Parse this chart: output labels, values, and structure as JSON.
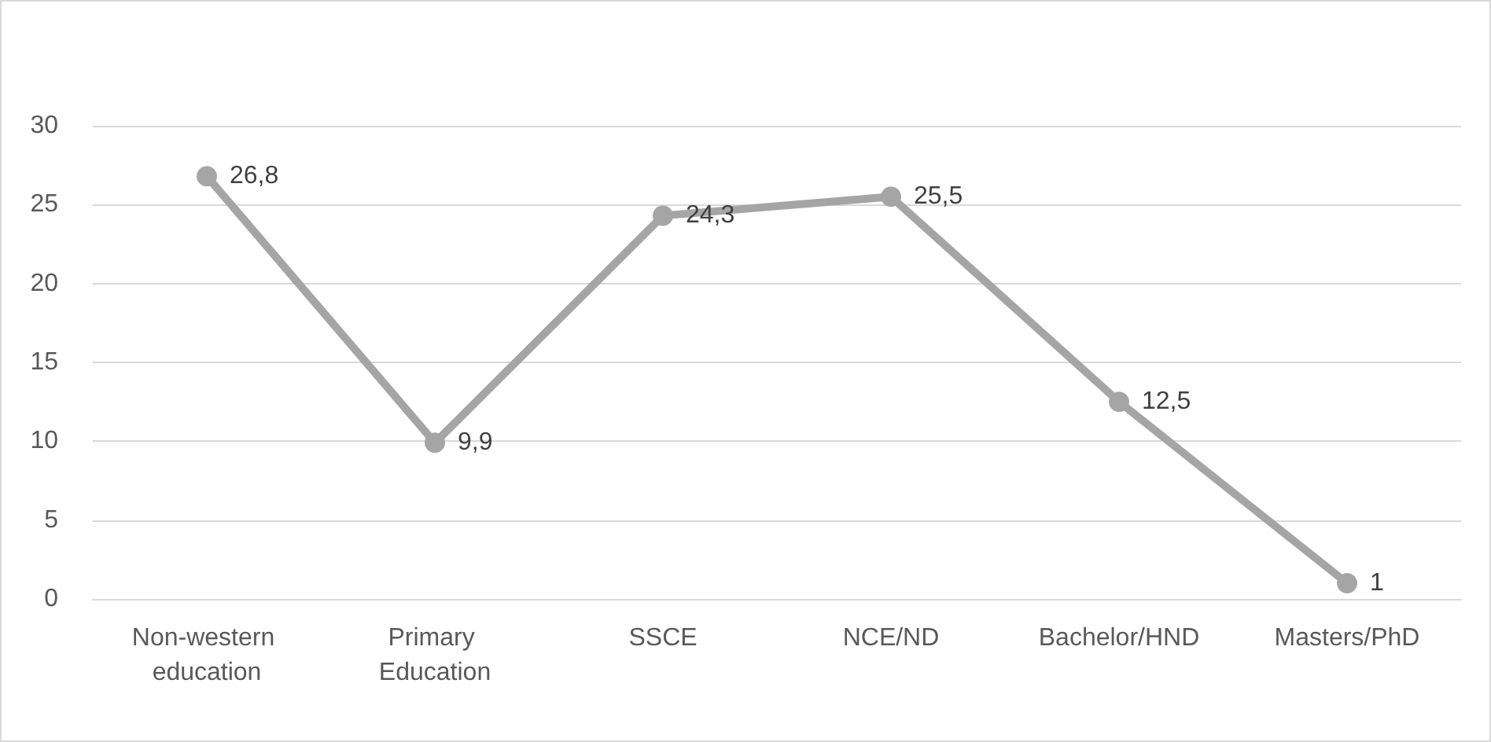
{
  "chart_data": {
    "type": "line",
    "categories": [
      "Non-western education",
      "Primary Education",
      "SSCE",
      "NCE/ND",
      "Bachelor/HND",
      "Masters/PhD"
    ],
    "series": [
      {
        "color": "#a5a5a5",
        "values": [
          26.8,
          9.9,
          24.3,
          25.5,
          12.5,
          1
        ],
        "value_labels": [
          "26,8",
          "9,9",
          "24,3",
          "25,5",
          "12,5",
          "1"
        ]
      }
    ],
    "ylim": [
      0,
      30
    ],
    "yticks": [
      0,
      5,
      10,
      15,
      20,
      25,
      30
    ],
    "grid": "y",
    "marker": "circle",
    "line_style": "solid"
  }
}
